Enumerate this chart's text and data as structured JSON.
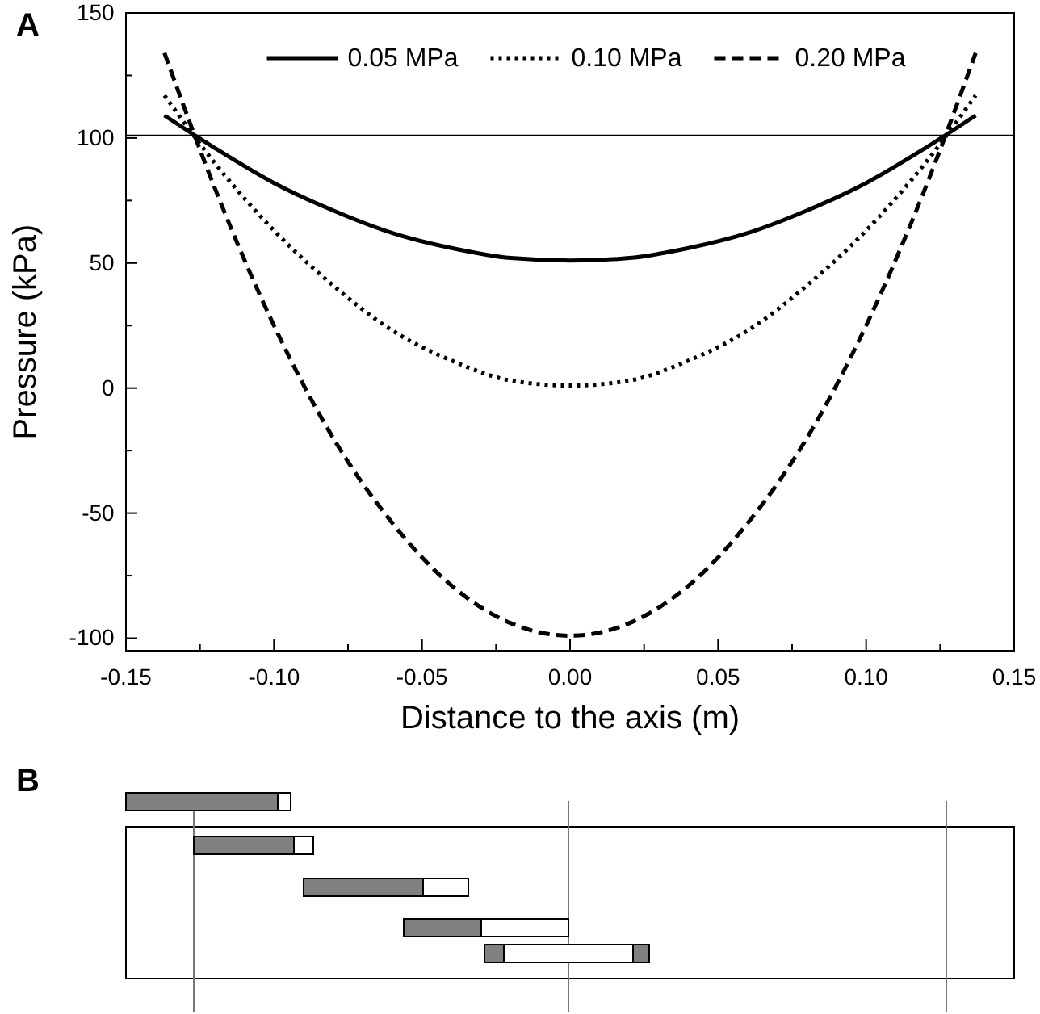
{
  "chart_data": {
    "type": "line",
    "xlabel": "Distance to the axis (m)",
    "ylabel": "Pressure (kPa)",
    "annotations": [
      "A",
      "B"
    ],
    "x": [
      -0.137,
      -0.12,
      -0.1,
      -0.08,
      -0.06,
      -0.04,
      -0.02,
      0,
      0.02,
      0.04,
      0.06,
      0.08,
      0.1,
      0.12,
      0.137
    ],
    "series": [
      {
        "name": "0.05 MPa",
        "color": "#000000",
        "line_style": "solid",
        "values": [
          109,
          96,
          82,
          71,
          62,
          56,
          52,
          51,
          52,
          56,
          62,
          71,
          82,
          96,
          109
        ]
      },
      {
        "name": "0.10 MPa",
        "color": "#000000",
        "line_style": "dotted",
        "values": [
          117,
          90,
          63,
          41,
          23,
          11,
          3,
          1,
          3,
          11,
          23,
          41,
          63,
          90,
          117
        ]
      },
      {
        "name": "0.20 MPa",
        "color": "#000000",
        "line_style": "dashed",
        "values": [
          134,
          80,
          25,
          -20,
          -54,
          -79,
          -94,
          -99,
          -94,
          -79,
          -54,
          -20,
          25,
          80,
          134
        ]
      }
    ],
    "xlim": [
      -0.15,
      0.15
    ],
    "xticks": [
      {
        "value": -0.15,
        "label": "-0.15"
      },
      {
        "value": -0.125,
        "label": null
      },
      {
        "value": -0.1,
        "label": "-0.10"
      },
      {
        "value": -0.075,
        "label": null
      },
      {
        "value": -0.05,
        "label": "-0.05"
      },
      {
        "value": -0.025,
        "label": null
      },
      {
        "value": 0,
        "label": "0.00"
      },
      {
        "value": 0.025,
        "label": null
      },
      {
        "value": 0.05,
        "label": "0.05"
      },
      {
        "value": 0.075,
        "label": null
      },
      {
        "value": 0.1,
        "label": "0.10"
      },
      {
        "value": 0.125,
        "label": null
      },
      {
        "value": 0.15,
        "label": "0.15"
      }
    ],
    "ylim": [
      -105,
      150
    ],
    "yticks": [
      -100,
      {
        "value": -75,
        "label": null
      },
      -50,
      {
        "value": -25,
        "label": null
      },
      0,
      {
        "value": 25,
        "label": null
      },
      50,
      {
        "value": 75,
        "label": null
      },
      100,
      {
        "value": 125,
        "label": null
      },
      150
    ],
    "ref_lines": [
      {
        "axis": "y",
        "value": 101,
        "label": null,
        "color": "#000000"
      }
    ],
    "legend": "top",
    "grid": false,
    "marker": "none"
  }
}
